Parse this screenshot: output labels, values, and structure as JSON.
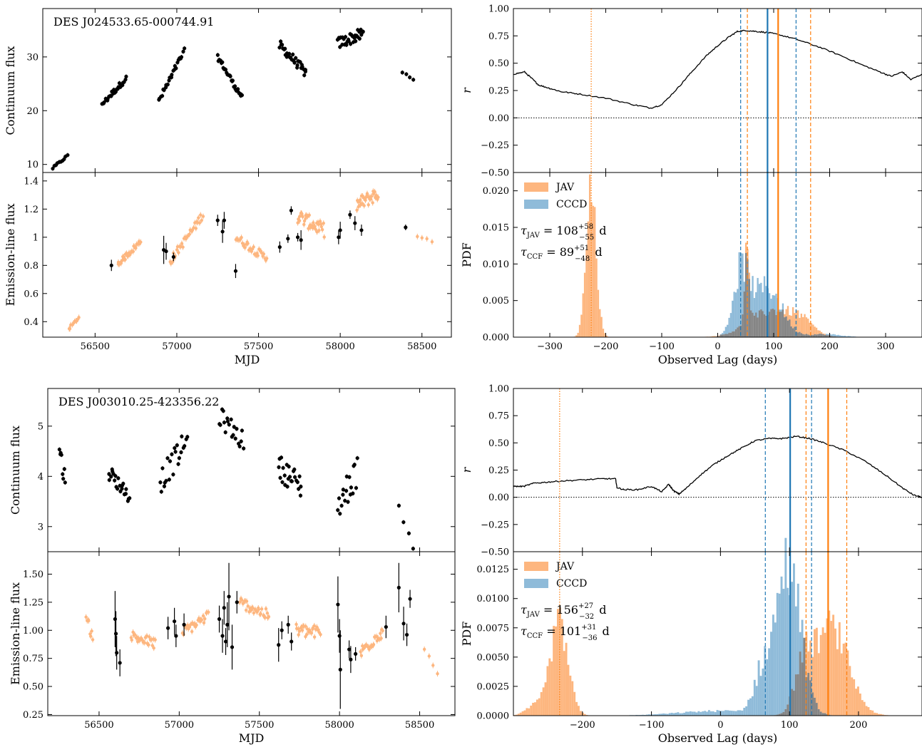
{
  "colors": {
    "jav": "#ff7f0e",
    "jav_fill": "#fdb67f",
    "ccf": "#1f77b4",
    "ccf_fill": "#8fbbd9",
    "overlap": "#858585",
    "black": "#000000"
  },
  "chart_data": [
    {
      "id": "obj1_continuum",
      "type": "scatter",
      "title": "DES J024533.65-000744.91",
      "xlabel": "",
      "ylabel": "Continuum flux",
      "xlim": [
        56180,
        58680
      ],
      "ylim": [
        8.5,
        39
      ],
      "xticks": [
        56500,
        57000,
        57500,
        58000,
        58500
      ],
      "yticks": [
        10,
        20,
        30
      ],
      "xtick_labels": false,
      "groups": [
        {
          "x0": 56240,
          "x1": 56330,
          "y0": 9.3,
          "y1": 11.6,
          "n": 10,
          "jitter": 0.2
        },
        {
          "x0": 56545,
          "x1": 56690,
          "y0": 21.3,
          "y1": 26.0,
          "n": 26,
          "jitter": 0.5
        },
        {
          "x0": 56890,
          "x1": 57045,
          "y0": 21.8,
          "y1": 31.0,
          "n": 24,
          "jitter": 0.6
        },
        {
          "x0": 57250,
          "x1": 57400,
          "y0": 30.0,
          "y1": 22.4,
          "n": 28,
          "jitter": 0.5
        },
        {
          "x0": 57630,
          "x1": 57790,
          "y0": 32.2,
          "y1": 27.0,
          "n": 32,
          "jitter": 0.9
        },
        {
          "x0": 57985,
          "x1": 58140,
          "y0": 32.5,
          "y1": 34.3,
          "n": 32,
          "jitter": 1.1
        },
        {
          "x0": 58380,
          "x1": 58450,
          "y0": 27.1,
          "y1": 25.9,
          "n": 4,
          "jitter": 0.2
        }
      ]
    },
    {
      "id": "obj1_line",
      "type": "scatter",
      "xlabel": "MJD",
      "ylabel": "Emission-line flux",
      "xlim": [
        56180,
        58680
      ],
      "ylim": [
        0.29,
        1.46
      ],
      "xticks": [
        56500,
        57000,
        57500,
        58000,
        58500
      ],
      "yticks": [
        0.4,
        0.6,
        0.8,
        1.0,
        1.2,
        1.4
      ],
      "xtick_labels": true,
      "orange_groups": [
        {
          "x0": 56340,
          "x1": 56400,
          "y0": 0.35,
          "y1": 0.43,
          "n": 10,
          "jitter": 0.01
        },
        {
          "x0": 56640,
          "x1": 56780,
          "y0": 0.81,
          "y1": 0.97,
          "n": 30,
          "jitter": 0.02
        },
        {
          "x0": 56960,
          "x1": 57160,
          "y0": 0.83,
          "y1": 1.16,
          "n": 32,
          "jitter": 0.03
        },
        {
          "x0": 57360,
          "x1": 57550,
          "y0": 1.0,
          "y1": 0.85,
          "n": 34,
          "jitter": 0.03
        },
        {
          "x0": 57740,
          "x1": 57900,
          "y0": 1.15,
          "y1": 1.05,
          "n": 36,
          "jitter": 0.05
        },
        {
          "x0": 58100,
          "x1": 58230,
          "y0": 1.23,
          "y1": 1.31,
          "n": 32,
          "jitter": 0.05
        },
        {
          "x0": 58470,
          "x1": 58560,
          "y0": 1.0,
          "y1": 0.97,
          "n": 4,
          "jitter": 0.01
        }
      ],
      "black_points": [
        {
          "x": 56600,
          "y": 0.8,
          "e": 0.04
        },
        {
          "x": 56920,
          "y": 0.91,
          "e": 0.1
        },
        {
          "x": 56935,
          "y": 0.9,
          "e": 0.06
        },
        {
          "x": 56980,
          "y": 0.86,
          "e": 0.03
        },
        {
          "x": 57250,
          "y": 1.12,
          "e": 0.04
        },
        {
          "x": 57280,
          "y": 1.04,
          "e": 0.08
        },
        {
          "x": 57290,
          "y": 1.12,
          "e": 0.06
        },
        {
          "x": 57360,
          "y": 0.76,
          "e": 0.05
        },
        {
          "x": 57630,
          "y": 0.93,
          "e": 0.04
        },
        {
          "x": 57680,
          "y": 0.99,
          "e": 0.03
        },
        {
          "x": 57700,
          "y": 1.19,
          "e": 0.03
        },
        {
          "x": 57740,
          "y": 1.0,
          "e": 0.03
        },
        {
          "x": 57760,
          "y": 0.98,
          "e": 0.07
        },
        {
          "x": 57990,
          "y": 1.0,
          "e": 0.05
        },
        {
          "x": 58000,
          "y": 1.05,
          "e": 0.06
        },
        {
          "x": 58060,
          "y": 1.16,
          "e": 0.03
        },
        {
          "x": 58090,
          "y": 1.1,
          "e": 0.05
        },
        {
          "x": 58130,
          "y": 1.05,
          "e": 0.04
        },
        {
          "x": 58400,
          "y": 1.07,
          "e": 0.02
        }
      ]
    },
    {
      "id": "obj1_ccf",
      "type": "line",
      "xlabel": "",
      "ylabel": "r",
      "xlim": [
        -365,
        365
      ],
      "ylim": [
        -0.5,
        1.0
      ],
      "xticks": [
        -300,
        -200,
        -100,
        0,
        100,
        200,
        300
      ],
      "yticks": [
        -0.5,
        -0.25,
        0.0,
        0.25,
        0.5,
        0.75,
        1.0
      ],
      "ytick_labels": [
        "−0.50",
        "−0.25",
        "0.00",
        "0.25",
        "0.50",
        "0.75",
        "1.00"
      ],
      "xtick_labels": false,
      "zero_line": true,
      "x": [
        -365,
        -345,
        -330,
        -320,
        -300,
        -280,
        -250,
        -200,
        -150,
        -120,
        -100,
        -70,
        -50,
        -20,
        0,
        20,
        35,
        50,
        70,
        90,
        110,
        140,
        180,
        220,
        260,
        290,
        310,
        330,
        345,
        365
      ],
      "y": [
        0.4,
        0.42,
        0.35,
        0.3,
        0.27,
        0.24,
        0.22,
        0.18,
        0.12,
        0.09,
        0.12,
        0.28,
        0.4,
        0.57,
        0.66,
        0.74,
        0.79,
        0.8,
        0.79,
        0.78,
        0.76,
        0.72,
        0.65,
        0.57,
        0.48,
        0.42,
        0.38,
        0.42,
        0.35,
        0.4
      ],
      "vlines": [
        {
          "x": 89,
          "color": "ccf",
          "style": "solid"
        },
        {
          "x": 41,
          "color": "ccf",
          "style": "dashed"
        },
        {
          "x": 140,
          "color": "ccf",
          "style": "dashed"
        },
        {
          "x": 108,
          "color": "jav",
          "style": "solid"
        },
        {
          "x": 53,
          "color": "jav",
          "style": "dashed"
        },
        {
          "x": 166,
          "color": "jav",
          "style": "dashed"
        },
        {
          "x": -226,
          "color": "jav",
          "style": "dotted"
        }
      ]
    },
    {
      "id": "obj1_pdf",
      "type": "histogram",
      "xlabel": "Observed Lag (days)",
      "ylabel": "PDF",
      "xlim": [
        -365,
        365
      ],
      "ylim": [
        0,
        0.0225
      ],
      "xticks": [
        -300,
        -200,
        -100,
        0,
        100,
        200,
        300
      ],
      "yticks": [
        0.0,
        0.005,
        0.01,
        0.015,
        0.02
      ],
      "ytick_labels": [
        "0.000",
        "0.005",
        "0.010",
        "0.015",
        "0.020"
      ],
      "xtick_labels": true,
      "legend": [
        "JAV",
        "CCCD"
      ],
      "annotations": [
        {
          "sym": "τ",
          "sub": "JAV",
          "val": "108",
          "sup": "+58",
          "inf": "−55",
          "unit": "d"
        },
        {
          "sym": "τ",
          "sub": "CCF",
          "val": "89",
          "sup": "+51",
          "inf": "−48",
          "unit": "d"
        }
      ],
      "jav_components": [
        {
          "mu": -226,
          "sigma": 9,
          "amp": 0.0195
        },
        {
          "mu": 52,
          "sigma": 4,
          "amp": 0.0105
        },
        {
          "mu": 95,
          "sigma": 40,
          "amp": 0.0035
        },
        {
          "mu": 148,
          "sigma": 22,
          "amp": 0.0016
        }
      ],
      "ccf_components": [
        {
          "mu": 42,
          "sigma": 14,
          "amp": 0.0085
        },
        {
          "mu": 88,
          "sigma": 26,
          "amp": 0.0068
        },
        {
          "mu": 190,
          "sigma": 30,
          "amp": 0.0004
        }
      ],
      "vlines": [
        {
          "x": 89,
          "color": "ccf",
          "style": "solid"
        },
        {
          "x": 41,
          "color": "ccf",
          "style": "dashed"
        },
        {
          "x": 140,
          "color": "ccf",
          "style": "dashed"
        },
        {
          "x": 108,
          "color": "jav",
          "style": "solid"
        },
        {
          "x": 53,
          "color": "jav",
          "style": "dashed"
        },
        {
          "x": 166,
          "color": "jav",
          "style": "dashed"
        },
        {
          "x": -226,
          "color": "jav",
          "style": "dotted"
        }
      ]
    },
    {
      "id": "obj2_continuum",
      "type": "scatter",
      "title": "DES J003010.25-423356.22",
      "xlabel": "",
      "ylabel": "Continuum flux",
      "xlim": [
        56180,
        58720
      ],
      "ylim": [
        2.5,
        5.75
      ],
      "xticks": [
        56500,
        57000,
        57500,
        58000,
        58500
      ],
      "yticks": [
        3,
        4,
        5
      ],
      "xtick_labels": false,
      "groups": [
        {
          "x0": 56250,
          "x1": 56290,
          "y0": 4.6,
          "y1": 3.9,
          "n": 8,
          "jitter": 0.2
        },
        {
          "x0": 56560,
          "x1": 56690,
          "y0": 4.1,
          "y1": 3.6,
          "n": 22,
          "jitter": 0.15
        },
        {
          "x0": 56880,
          "x1": 57050,
          "y0": 3.9,
          "y1": 4.7,
          "n": 22,
          "jitter": 0.25
        },
        {
          "x0": 57250,
          "x1": 57400,
          "y0": 5.2,
          "y1": 4.7,
          "n": 20,
          "jitter": 0.2
        },
        {
          "x0": 57620,
          "x1": 57760,
          "y0": 4.2,
          "y1": 3.8,
          "n": 24,
          "jitter": 0.25
        },
        {
          "x0": 57990,
          "x1": 58110,
          "y0": 3.4,
          "y1": 4.1,
          "n": 18,
          "jitter": 0.3
        },
        {
          "x0": 58370,
          "x1": 58460,
          "y0": 3.4,
          "y1": 2.6,
          "n": 4,
          "jitter": 0.05
        }
      ]
    },
    {
      "id": "obj2_line",
      "type": "scatter",
      "xlabel": "MJD",
      "ylabel": "Emission-line flux",
      "xlim": [
        56180,
        58720
      ],
      "ylim": [
        0.24,
        1.7
      ],
      "xticks": [
        56500,
        57000,
        57500,
        58000,
        58500
      ],
      "yticks": [
        0.25,
        0.5,
        0.75,
        1.0,
        1.25,
        1.5
      ],
      "ytick_labels": [
        "0.25",
        "0.50",
        "0.75",
        "1.00",
        "1.25",
        "1.50"
      ],
      "xtick_labels": true,
      "orange_groups": [
        {
          "x0": 56420,
          "x1": 56460,
          "y0": 1.1,
          "y1": 0.95,
          "n": 8,
          "jitter": 0.05
        },
        {
          "x0": 56700,
          "x1": 56850,
          "y0": 0.95,
          "y1": 0.88,
          "n": 26,
          "jitter": 0.05
        },
        {
          "x0": 57020,
          "x1": 57180,
          "y0": 0.98,
          "y1": 1.13,
          "n": 26,
          "jitter": 0.05
        },
        {
          "x0": 57380,
          "x1": 57560,
          "y0": 1.25,
          "y1": 1.13,
          "n": 30,
          "jitter": 0.05
        },
        {
          "x0": 57730,
          "x1": 57880,
          "y0": 1.0,
          "y1": 0.98,
          "n": 28,
          "jitter": 0.06
        },
        {
          "x0": 58130,
          "x1": 58270,
          "y0": 0.8,
          "y1": 1.0,
          "n": 26,
          "jitter": 0.06
        },
        {
          "x0": 58530,
          "x1": 58610,
          "y0": 0.82,
          "y1": 0.63,
          "n": 4,
          "jitter": 0.02
        }
      ],
      "black_points": [
        {
          "x": 56600,
          "y": 1.1,
          "e": 0.25
        },
        {
          "x": 56605,
          "y": 0.97,
          "e": 0.2
        },
        {
          "x": 56610,
          "y": 0.8,
          "e": 0.15
        },
        {
          "x": 56630,
          "y": 0.71,
          "e": 0.12
        },
        {
          "x": 56930,
          "y": 1.02,
          "e": 0.1
        },
        {
          "x": 56970,
          "y": 1.08,
          "e": 0.12
        },
        {
          "x": 56980,
          "y": 0.95,
          "e": 0.1
        },
        {
          "x": 57030,
          "y": 1.05,
          "e": 0.1
        },
        {
          "x": 57250,
          "y": 1.1,
          "e": 0.12
        },
        {
          "x": 57270,
          "y": 0.95,
          "e": 0.15
        },
        {
          "x": 57280,
          "y": 1.2,
          "e": 0.15
        },
        {
          "x": 57290,
          "y": 0.9,
          "e": 0.12
        },
        {
          "x": 57300,
          "y": 1.05,
          "e": 0.2
        },
        {
          "x": 57310,
          "y": 1.3,
          "e": 0.3
        },
        {
          "x": 57330,
          "y": 0.85,
          "e": 0.2
        },
        {
          "x": 57360,
          "y": 1.25,
          "e": 0.1
        },
        {
          "x": 57620,
          "y": 0.87,
          "e": 0.15
        },
        {
          "x": 57640,
          "y": 1.0,
          "e": 0.08
        },
        {
          "x": 57680,
          "y": 1.05,
          "e": 0.08
        },
        {
          "x": 57700,
          "y": 0.9,
          "e": 0.08
        },
        {
          "x": 57990,
          "y": 1.23,
          "e": 0.25
        },
        {
          "x": 58000,
          "y": 0.95,
          "e": 0.15
        },
        {
          "x": 58005,
          "y": 0.65,
          "e": 0.35
        },
        {
          "x": 58060,
          "y": 0.83,
          "e": 0.08
        },
        {
          "x": 58070,
          "y": 0.74,
          "e": 0.12
        },
        {
          "x": 58100,
          "y": 0.79,
          "e": 0.06
        },
        {
          "x": 58290,
          "y": 1.03,
          "e": 0.1
        },
        {
          "x": 58370,
          "y": 1.38,
          "e": 0.22
        },
        {
          "x": 58400,
          "y": 1.06,
          "e": 0.15
        },
        {
          "x": 58420,
          "y": 0.96,
          "e": 0.1
        },
        {
          "x": 58440,
          "y": 1.28,
          "e": 0.08
        }
      ]
    },
    {
      "id": "obj2_ccf",
      "type": "line",
      "xlabel": "",
      "ylabel": "r",
      "xlim": [
        -300,
        292
      ],
      "ylim": [
        -0.5,
        1.0
      ],
      "xticks": [
        -200,
        -100,
        0,
        100,
        200
      ],
      "yticks": [
        -0.5,
        -0.25,
        0.0,
        0.25,
        0.5,
        0.75,
        1.0
      ],
      "ytick_labels": [
        "−0.50",
        "−0.25",
        "0.00",
        "0.25",
        "0.50",
        "0.75",
        "1.00"
      ],
      "xtick_labels": false,
      "zero_line": true,
      "x": [
        -300,
        -285,
        -270,
        -250,
        -230,
        -200,
        -170,
        -152,
        -150,
        -140,
        -120,
        -100,
        -85,
        -75,
        -68,
        -60,
        -50,
        -30,
        -10,
        10,
        30,
        50,
        70,
        90,
        110,
        130,
        150,
        180,
        210,
        240,
        265,
        280,
        292
      ],
      "y": [
        0.1,
        0.1,
        0.13,
        0.14,
        0.15,
        0.16,
        0.17,
        0.17,
        0.09,
        0.07,
        0.07,
        0.1,
        0.05,
        0.12,
        0.06,
        0.03,
        0.08,
        0.2,
        0.3,
        0.38,
        0.45,
        0.52,
        0.54,
        0.54,
        0.56,
        0.54,
        0.5,
        0.43,
        0.33,
        0.2,
        0.08,
        0.02,
        0.0
      ],
      "vlines": [
        {
          "x": 101,
          "color": "ccf",
          "style": "solid"
        },
        {
          "x": 65,
          "color": "ccf",
          "style": "dashed"
        },
        {
          "x": 132,
          "color": "ccf",
          "style": "dashed"
        },
        {
          "x": 156,
          "color": "jav",
          "style": "solid"
        },
        {
          "x": 124,
          "color": "jav",
          "style": "dashed"
        },
        {
          "x": 183,
          "color": "jav",
          "style": "dashed"
        },
        {
          "x": -233,
          "color": "jav",
          "style": "dotted"
        }
      ]
    },
    {
      "id": "obj2_pdf",
      "type": "histogram",
      "xlabel": "Observed Lag (days)",
      "ylabel": "PDF",
      "xlim": [
        -300,
        292
      ],
      "ylim": [
        0,
        0.014
      ],
      "xticks": [
        -200,
        -100,
        0,
        100,
        200
      ],
      "yticks": [
        0.0,
        0.0025,
        0.005,
        0.0075,
        0.01,
        0.0125
      ],
      "ytick_labels": [
        "0.0000",
        "0.0025",
        "0.0050",
        "0.0075",
        "0.0100",
        "0.0125"
      ],
      "xtick_labels": true,
      "legend": [
        "JAV",
        "CCCD"
      ],
      "annotations": [
        {
          "sym": "τ",
          "sub": "JAV",
          "val": "156",
          "sup": "+27",
          "inf": "−32",
          "unit": "d"
        },
        {
          "sym": "τ",
          "sub": "CCF",
          "val": "101",
          "sup": "+31",
          "inf": "−36",
          "unit": "d"
        }
      ],
      "jav_components": [
        {
          "mu": -234,
          "sigma": 13,
          "amp": 0.0078
        },
        {
          "mu": -270,
          "sigma": 12,
          "amp": 0.0008
        },
        {
          "mu": 160,
          "sigma": 25,
          "amp": 0.0076
        },
        {
          "mu": 120,
          "sigma": 12,
          "amp": 0.0035
        }
      ],
      "ccf_components": [
        {
          "mu": 98,
          "sigma": 18,
          "amp": 0.0128
        },
        {
          "mu": 60,
          "sigma": 12,
          "amp": 0.003
        },
        {
          "mu": 0,
          "sigma": 60,
          "amp": 0.0004
        }
      ],
      "vlines": [
        {
          "x": 101,
          "color": "ccf",
          "style": "solid"
        },
        {
          "x": 65,
          "color": "ccf",
          "style": "dashed"
        },
        {
          "x": 132,
          "color": "ccf",
          "style": "dashed"
        },
        {
          "x": 156,
          "color": "jav",
          "style": "solid"
        },
        {
          "x": 124,
          "color": "jav",
          "style": "dashed"
        },
        {
          "x": 183,
          "color": "jav",
          "style": "dashed"
        },
        {
          "x": -233,
          "color": "jav",
          "style": "dotted"
        }
      ]
    }
  ]
}
